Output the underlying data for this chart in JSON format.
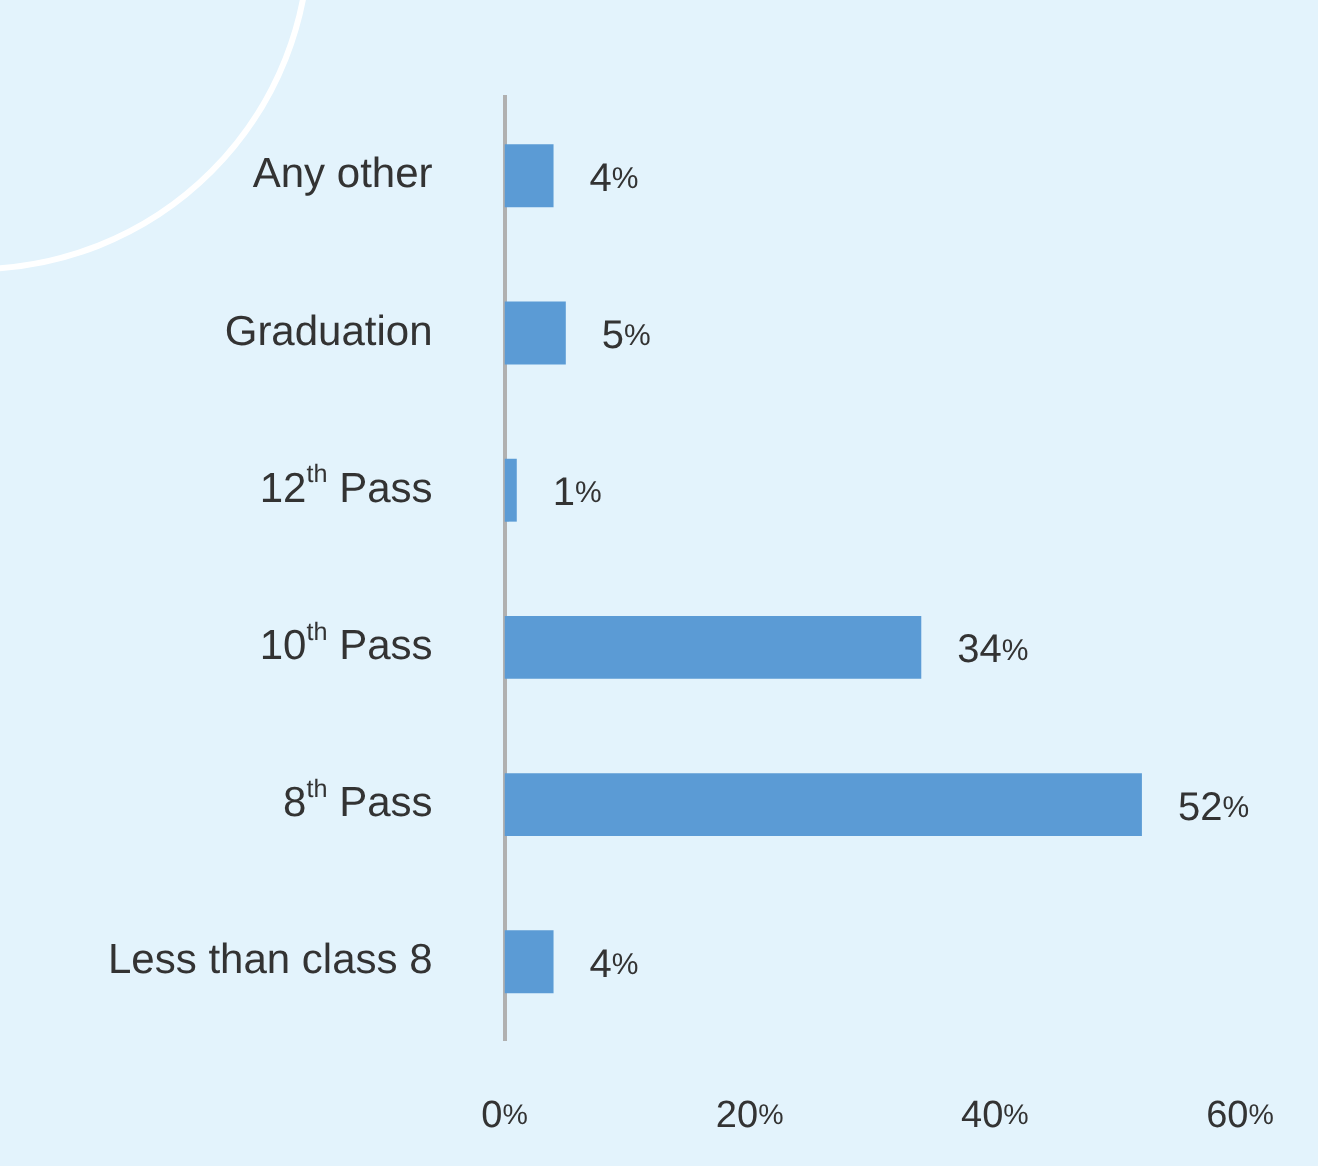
{
  "chart_data": {
    "type": "bar",
    "orientation": "horizontal",
    "categories": [
      "Any other",
      "Graduation",
      "12$^{th}$ Pass",
      "10$^{th}$ Pass",
      "8$^{th}$ Pass",
      "Less than class 8"
    ],
    "values": [
      4,
      5,
      1,
      34,
      52,
      4
    ],
    "value_labels": [
      "4%",
      "5%",
      "1%",
      "34%",
      "52%",
      "4%"
    ],
    "color": "#5b9bd5",
    "xlim": [
      0,
      60
    ],
    "xticks": [
      {
        "value": 0,
        "label": "0%"
      },
      {
        "value": 20,
        "label": "20%"
      },
      {
        "value": 40,
        "label": "40%"
      },
      {
        "value": 60,
        "label": "60%"
      }
    ],
    "grid": false,
    "legend": false
  }
}
